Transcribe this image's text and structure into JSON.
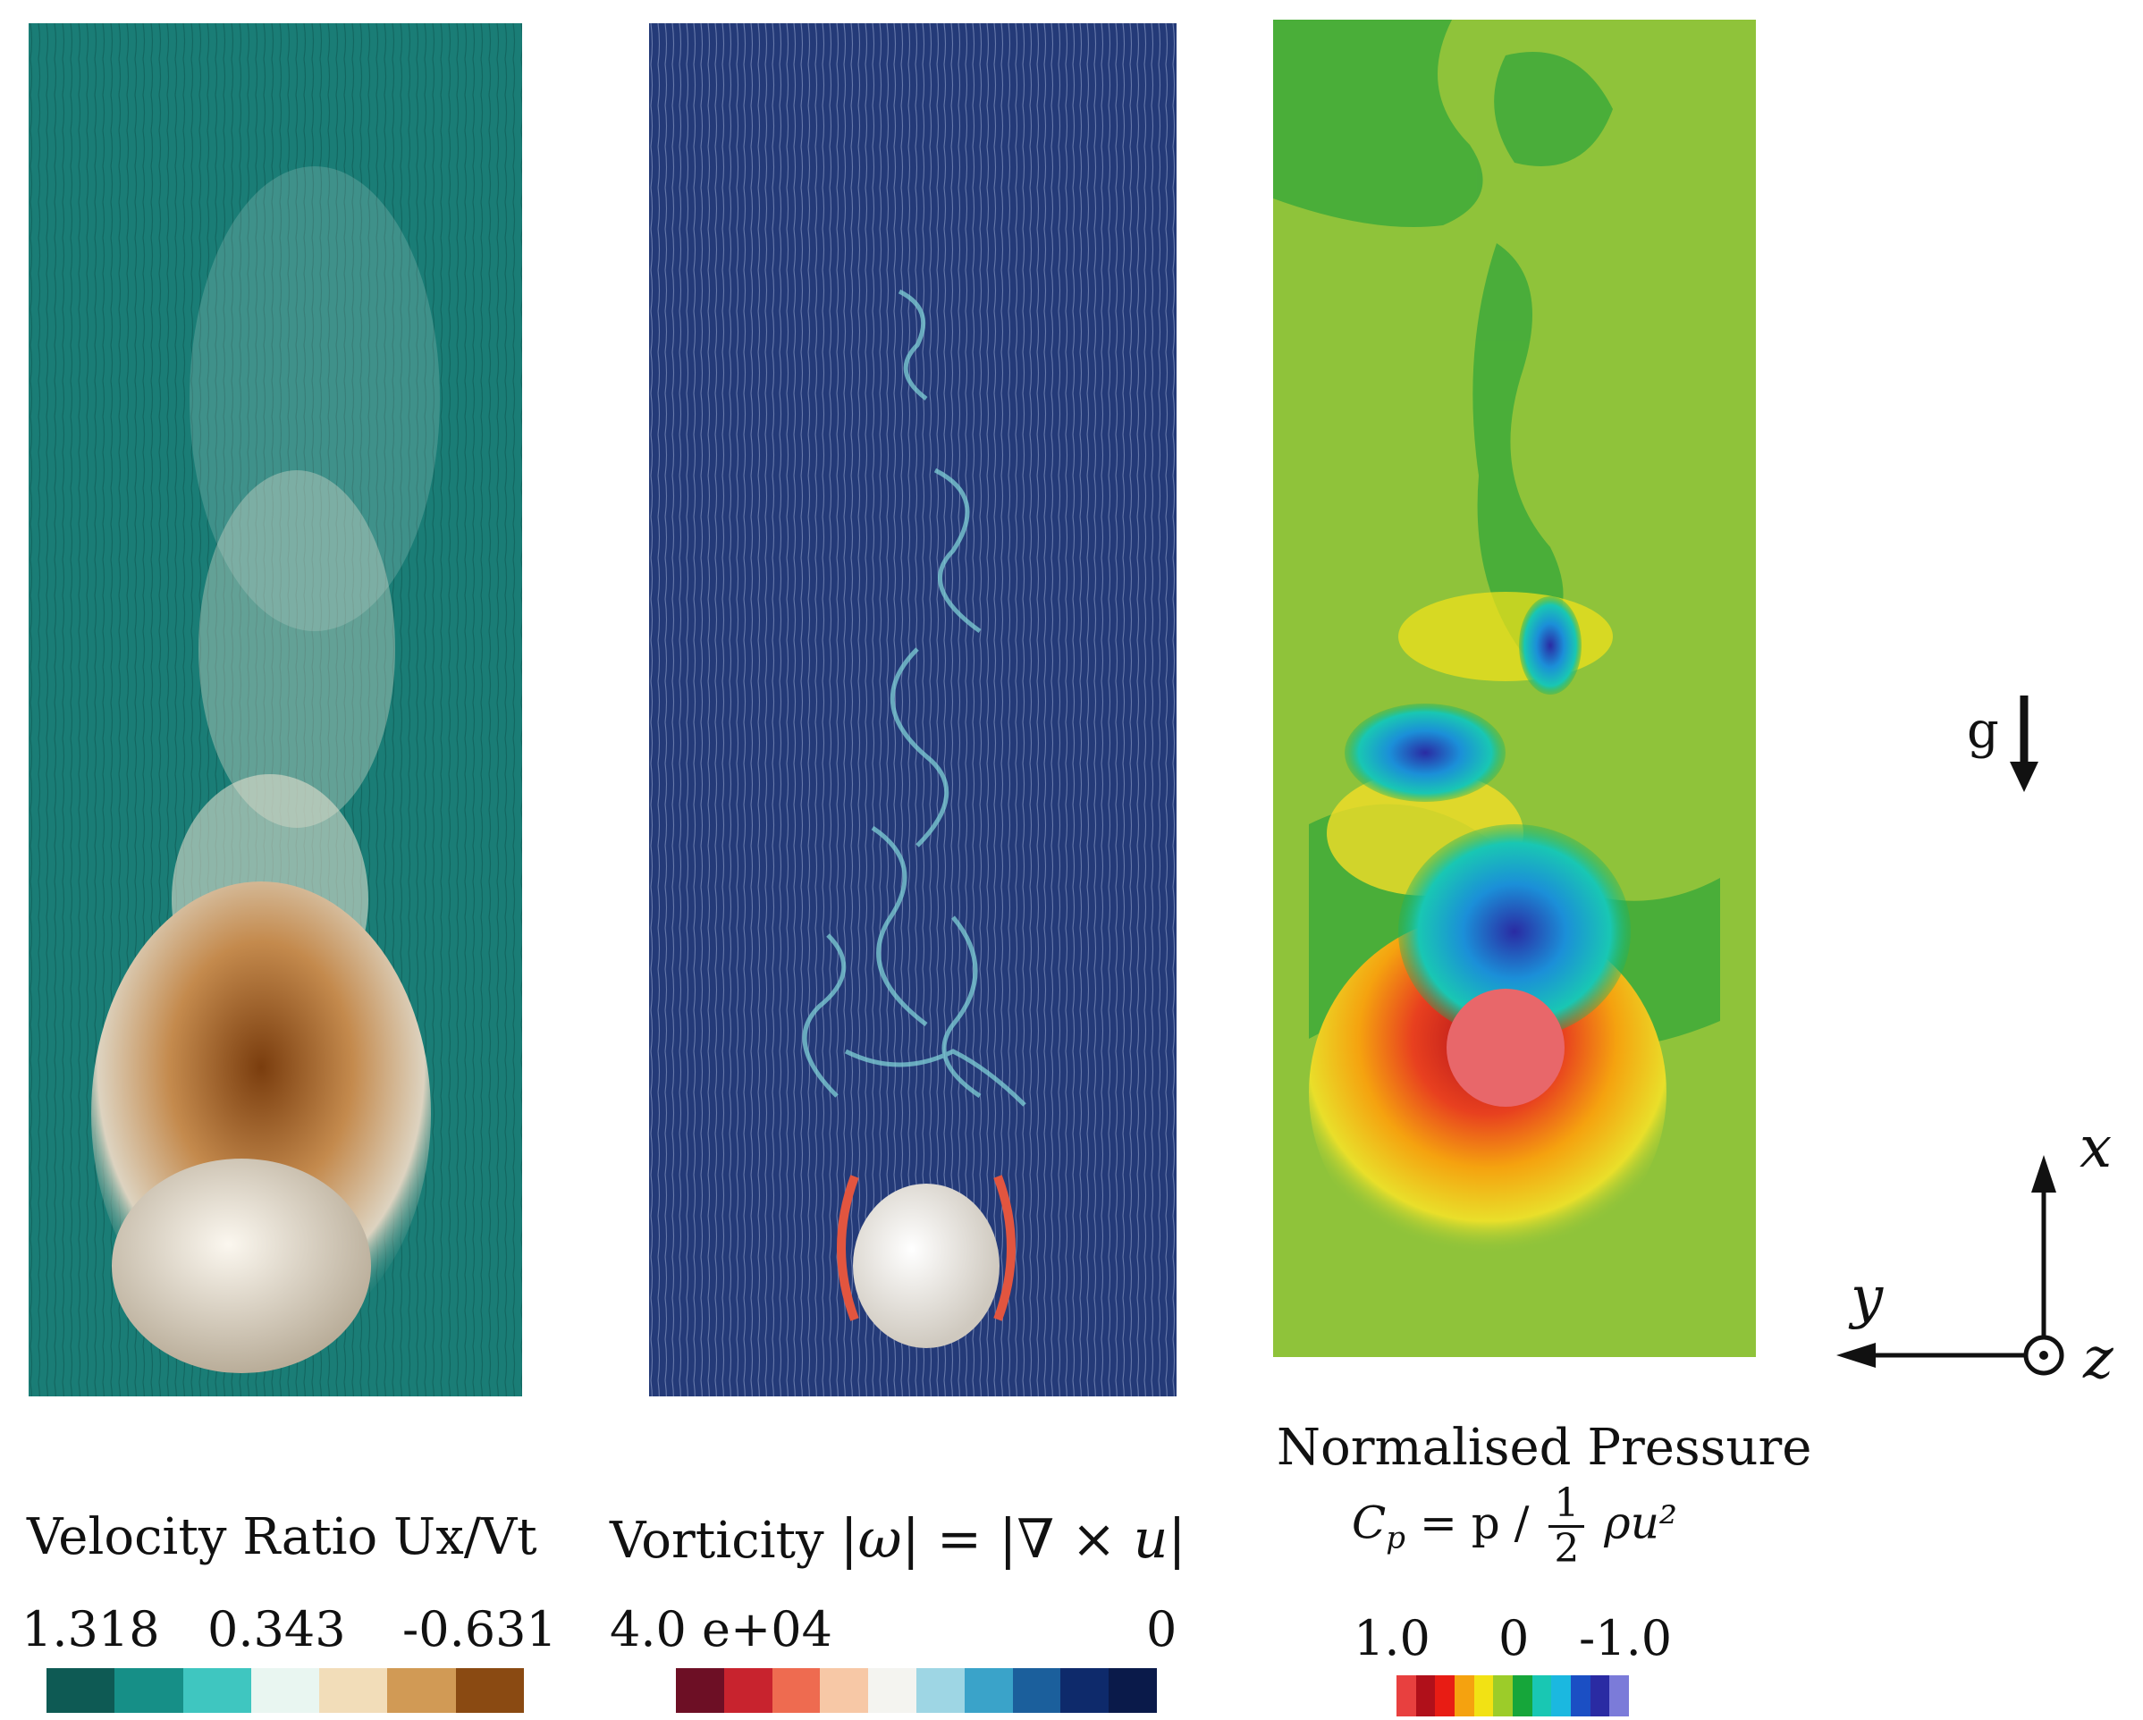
{
  "panels": {
    "velocity": {
      "title": "Velocity Ratio Ux/Vt",
      "ticks": [
        "1.318",
        "0.343",
        "-0.631"
      ],
      "colors": [
        "#0e5a54",
        "#168f87",
        "#3fc6c0",
        "#e9f6f1",
        "#f2ddb9",
        "#d19a55",
        "#8a4a12"
      ],
      "background": "#1a7d76",
      "sphere_color": "#e7ddcc"
    },
    "vorticity": {
      "title_prefix": "Vorticity",
      "formula": "|ω| = |∇ × u|",
      "ticks": [
        "4.0 e+04",
        "0"
      ],
      "colors": [
        "#6d0f25",
        "#c8232e",
        "#ee6b50",
        "#f7c8a6",
        "#f4f4f0",
        "#9ed6e4",
        "#3aa3c9",
        "#1b5f9c",
        "#0e2a6b",
        "#0a1a4a"
      ],
      "background": "#243a78",
      "sphere_color": "#f4f2ee"
    },
    "pressure": {
      "title": "Normalised Pressure",
      "formula_lhs": "C",
      "formula_sub": "p",
      "formula_mid": "= p /",
      "frac_num": "1",
      "frac_den": "2",
      "formula_rhs": "ρu²",
      "ticks": [
        "1.0",
        "0",
        "-1.0"
      ],
      "colors": [
        "#e8403f",
        "#b0101a",
        "#e81c14",
        "#f5a20f",
        "#f2e214",
        "#9ccc29",
        "#16a63a",
        "#19c7b3",
        "#1bb8e0",
        "#1b4fc4",
        "#2a2ba3",
        "#7b7bd9"
      ],
      "background": "#8fc33a",
      "sphere_color": "#e8676a"
    }
  },
  "gravity_label": "g",
  "axes": {
    "x": "x",
    "y": "y",
    "z": "z"
  }
}
